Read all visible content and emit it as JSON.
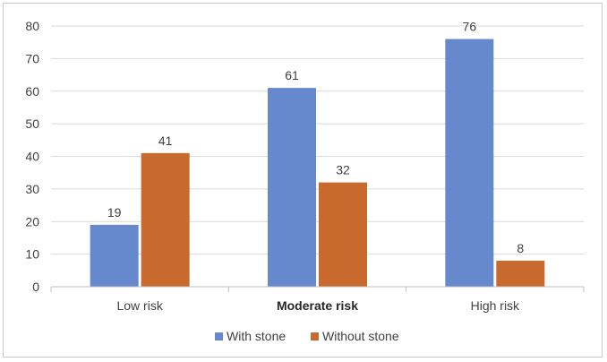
{
  "chart_data": {
    "type": "bar",
    "categories": [
      "Low risk",
      "Moderate risk",
      "High risk"
    ],
    "series": [
      {
        "name": "With stone",
        "values": [
          19,
          61,
          76
        ],
        "color": "#6688cc"
      },
      {
        "name": "Without stone",
        "values": [
          41,
          32,
          8
        ],
        "color": "#c8692e"
      }
    ],
    "ylim": [
      0,
      80
    ],
    "yticks": [
      0,
      10,
      20,
      30,
      40,
      50,
      60,
      70,
      80
    ],
    "grid": true,
    "legend_position": "bottom",
    "data_labels": true
  }
}
